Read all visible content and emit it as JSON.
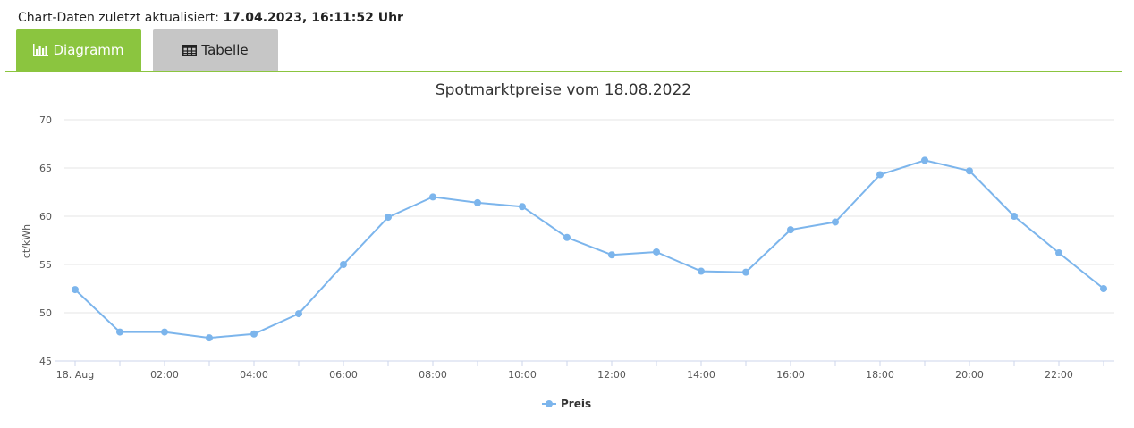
{
  "header": {
    "updated_label": "Chart-Daten zuletzt aktualisiert: ",
    "updated_value": "17.04.2023, 16:11:52 Uhr"
  },
  "tabs": [
    {
      "label": "Diagramm",
      "icon": "bar-chart-icon",
      "active": true
    },
    {
      "label": "Tabelle",
      "icon": "table-icon",
      "active": false
    }
  ],
  "colors": {
    "accent": "#8bc53f",
    "series": "#7cb5ec",
    "inactive_tab": "#c6c6c6"
  },
  "chart_data": {
    "type": "line",
    "title": "Spotmarktpreise vom 18.08.2022",
    "ylabel": "ct/kWh",
    "xlabel": "",
    "ylim": [
      45,
      70
    ],
    "yticks": [
      45,
      50,
      55,
      60,
      65,
      70
    ],
    "x": [
      "00:00",
      "01:00",
      "02:00",
      "03:00",
      "04:00",
      "05:00",
      "06:00",
      "07:00",
      "08:00",
      "09:00",
      "10:00",
      "11:00",
      "12:00",
      "13:00",
      "14:00",
      "15:00",
      "16:00",
      "17:00",
      "18:00",
      "19:00",
      "20:00",
      "21:00",
      "22:00",
      "23:00"
    ],
    "xtick_labels": [
      "18. Aug",
      "02:00",
      "04:00",
      "06:00",
      "08:00",
      "10:00",
      "12:00",
      "14:00",
      "16:00",
      "18:00",
      "20:00",
      "22:00"
    ],
    "series": [
      {
        "name": "Preis",
        "values": [
          52.4,
          48.0,
          48.0,
          47.4,
          47.8,
          49.9,
          55.0,
          59.9,
          62.0,
          61.4,
          61.0,
          57.8,
          56.0,
          56.3,
          54.3,
          54.2,
          58.6,
          59.4,
          64.3,
          65.8,
          64.7,
          60.0,
          56.2,
          52.5
        ]
      }
    ],
    "grid": true,
    "legend": "bottom-center"
  }
}
